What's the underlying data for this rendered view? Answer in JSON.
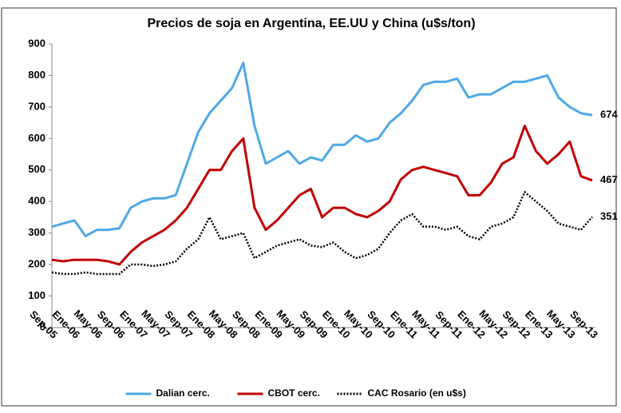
{
  "chart_data": {
    "type": "line",
    "title": "Precios de soja en Argentina, EE.UU y China (u$s/ton)",
    "categories": [
      "Sep-05",
      null,
      "Ene-06",
      null,
      "May-06",
      null,
      "Sep-06",
      null,
      "Ene-07",
      null,
      "May-07",
      null,
      "Sep-07",
      null,
      "Ene-08",
      null,
      "May-08",
      null,
      "Sep-08",
      null,
      "Ene-09",
      null,
      "May-09",
      null,
      "Sep-09",
      null,
      "Ene-10",
      null,
      "May-10",
      null,
      "Sep-10",
      null,
      "Ene-11",
      null,
      "May-11",
      null,
      "Sep-11",
      null,
      "Ene-12",
      null,
      "May-12",
      null,
      "Sep-12",
      null,
      "Ene-13",
      null,
      "May-13",
      null,
      "Sep-13"
    ],
    "series": [
      {
        "name": "Dalian cerc.",
        "color": "#4fa8e6",
        "values": [
          320,
          330,
          340,
          290,
          310,
          310,
          315,
          380,
          400,
          410,
          410,
          420,
          520,
          620,
          680,
          720,
          760,
          840,
          640,
          520,
          540,
          560,
          520,
          540,
          530,
          580,
          580,
          610,
          590,
          600,
          650,
          680,
          720,
          770,
          780,
          780,
          790,
          730,
          740,
          740,
          760,
          780,
          780,
          790,
          800,
          730,
          700,
          680,
          674
        ]
      },
      {
        "name": "CBOT cerc.",
        "color": "#c00000",
        "values": [
          215,
          210,
          215,
          215,
          215,
          210,
          200,
          240,
          270,
          290,
          310,
          340,
          380,
          440,
          500,
          500,
          560,
          600,
          380,
          310,
          340,
          380,
          420,
          440,
          350,
          380,
          380,
          360,
          350,
          370,
          400,
          470,
          500,
          510,
          500,
          490,
          480,
          420,
          420,
          460,
          520,
          540,
          640,
          560,
          520,
          550,
          590,
          480,
          467
        ]
      },
      {
        "name": "CAC Rosario (en u$s)",
        "color": "#000000",
        "dashed": true,
        "values": [
          175,
          170,
          170,
          175,
          170,
          170,
          170,
          200,
          200,
          195,
          200,
          210,
          250,
          280,
          350,
          280,
          290,
          300,
          220,
          240,
          260,
          270,
          280,
          260,
          255,
          270,
          240,
          220,
          230,
          250,
          300,
          340,
          360,
          320,
          320,
          310,
          320,
          290,
          280,
          320,
          330,
          350,
          430,
          400,
          370,
          330,
          320,
          310,
          351
        ]
      }
    ],
    "ylim": [
      0,
      900
    ],
    "yticks": [
      0,
      100,
      200,
      300,
      400,
      500,
      600,
      700,
      800,
      900
    ],
    "legend": "bottom"
  }
}
